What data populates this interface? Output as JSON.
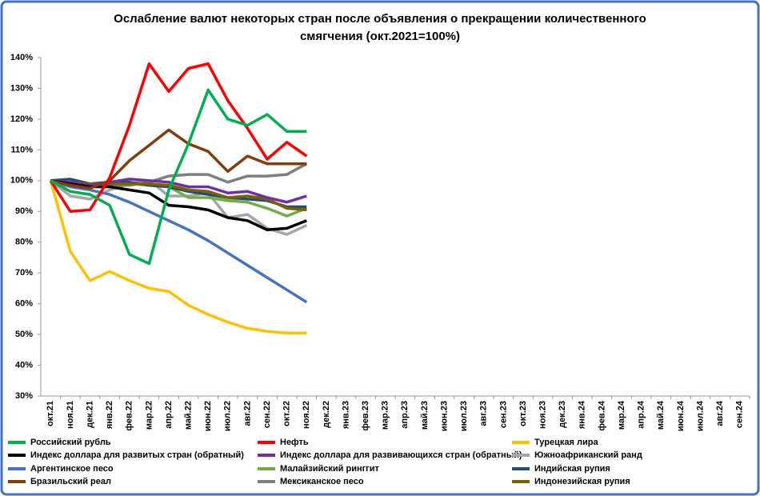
{
  "chart_data": {
    "type": "line",
    "title": "Ослабление валют некоторых стран после объявления о прекращении количественного",
    "subtitle": "смягчения  (окт.2021=100%)",
    "categories": [
      "окт.21",
      "ноя.21",
      "дек.21",
      "янв.22",
      "фев.22",
      "мар.22",
      "апр.22",
      "май.22",
      "июн.22",
      "июл.22",
      "авг.22",
      "сен.22",
      "окт.22",
      "ноя.22",
      "дек.22",
      "янв.23",
      "фев.23",
      "мар.23",
      "апр.23",
      "май.23",
      "июн.23",
      "июл.23",
      "авг.23",
      "сен.23",
      "окт.23",
      "ноя.23",
      "дек.23",
      "янв.24",
      "фев.24",
      "мар.24",
      "апр.24",
      "май.24",
      "июн.24",
      "июл.24",
      "авг.24",
      "сен.24"
    ],
    "ylim": [
      30,
      140
    ],
    "yticks": [
      {
        "value": 30,
        "label": "30%"
      },
      {
        "value": 40,
        "label": "40%"
      },
      {
        "value": 50,
        "label": "50%"
      },
      {
        "value": 60,
        "label": "60%"
      },
      {
        "value": 70,
        "label": "70%"
      },
      {
        "value": 80,
        "label": "80%"
      },
      {
        "value": 90,
        "label": "90%"
      },
      {
        "value": 100,
        "label": "100%"
      },
      {
        "value": 110,
        "label": "110%"
      },
      {
        "value": 120,
        "label": "120%"
      },
      {
        "value": 130,
        "label": "130%"
      },
      {
        "value": 140,
        "label": "140%"
      }
    ],
    "grid": false,
    "series": [
      {
        "name": "Российский рубль",
        "color": "#00b050",
        "values": [
          100,
          96.5,
          95.5,
          92,
          76,
          73,
          97,
          112,
          129.5,
          120,
          118,
          121.5,
          116,
          116,
          null,
          null,
          null,
          null,
          null,
          null,
          null,
          null,
          null,
          null,
          null,
          null,
          null,
          null,
          null,
          null,
          null,
          null,
          null,
          null,
          null,
          null
        ]
      },
      {
        "name": "Нефть",
        "color": "#ff0000",
        "values": [
          100,
          90,
          90.5,
          101,
          118,
          138,
          129,
          136.5,
          138,
          126,
          117,
          107,
          112.5,
          108,
          null,
          null,
          null,
          null,
          null,
          null,
          null,
          null,
          null,
          null,
          null,
          null,
          null,
          null,
          null,
          null,
          null,
          null,
          null,
          null,
          null,
          null
        ]
      },
      {
        "name": "Турецкая лира",
        "color": "#ffc000",
        "values": [
          100,
          77,
          67.5,
          70.5,
          67.5,
          65,
          64,
          59.5,
          56.5,
          54,
          52,
          51,
          50.5,
          50.5,
          null,
          null,
          null,
          null,
          null,
          null,
          null,
          null,
          null,
          null,
          null,
          null,
          null,
          null,
          null,
          null,
          null,
          null,
          null,
          null,
          null,
          null
        ]
      },
      {
        "name": "Индекс доллара для развитых стран (обратный)",
        "color": "#000000",
        "values": [
          100,
          99,
          98,
          98,
          97,
          96,
          92,
          91.5,
          90.5,
          88,
          87,
          84,
          84.5,
          87,
          null,
          null,
          null,
          null,
          null,
          null,
          null,
          null,
          null,
          null,
          null,
          null,
          null,
          null,
          null,
          null,
          null,
          null,
          null,
          null,
          null,
          null
        ]
      },
      {
        "name": "Индекс доллара для развивающихся стран (обратный)",
        "color": "#7030a0",
        "values": [
          100,
          99.5,
          98.5,
          99.5,
          100.5,
          100,
          99.5,
          98,
          98,
          96,
          96.5,
          94.5,
          93,
          95,
          null,
          null,
          null,
          null,
          null,
          null,
          null,
          null,
          null,
          null,
          null,
          null,
          null,
          null,
          null,
          null,
          null,
          null,
          null,
          null,
          null,
          null
        ]
      },
      {
        "name": "Южноафриканский ранд",
        "color": "#a6a6a6",
        "values": [
          100,
          95,
          94,
          97,
          99,
          100,
          95,
          95,
          96,
          88,
          89,
          84.5,
          82.5,
          85.5,
          null,
          null,
          null,
          null,
          null,
          null,
          null,
          null,
          null,
          null,
          null,
          null,
          null,
          null,
          null,
          null,
          null,
          null,
          null,
          null,
          null,
          null
        ]
      },
      {
        "name": "Аргентинское песо",
        "color": "#4472c4",
        "values": [
          100,
          98,
          97,
          95.5,
          93,
          90,
          87,
          84,
          80.5,
          76.5,
          72.5,
          68.5,
          64.5,
          60.5,
          null,
          null,
          null,
          null,
          null,
          null,
          null,
          null,
          null,
          null,
          null,
          null,
          null,
          null,
          null,
          null,
          null,
          null,
          null,
          null,
          null,
          null
        ]
      },
      {
        "name": "Малайзийский ринггит",
        "color": "#70ad47",
        "values": [
          100,
          98.5,
          98,
          99,
          99,
          98.5,
          98,
          94.5,
          94.5,
          93.5,
          93,
          91,
          88.5,
          91,
          null,
          null,
          null,
          null,
          null,
          null,
          null,
          null,
          null,
          null,
          null,
          null,
          null,
          null,
          null,
          null,
          null,
          null,
          null,
          null,
          null,
          null
        ]
      },
      {
        "name": "Индийская рупия",
        "color": "#1f4e79",
        "values": [
          100,
          100.5,
          99,
          99.5,
          99.5,
          98.5,
          98,
          96.5,
          95.5,
          94.5,
          94,
          93.5,
          91.5,
          91.5,
          null,
          null,
          null,
          null,
          null,
          null,
          null,
          null,
          null,
          null,
          null,
          null,
          null,
          null,
          null,
          null,
          null,
          null,
          null,
          null,
          null,
          null
        ]
      },
      {
        "name": "Бразильский реал",
        "color": "#843c0c",
        "values": [
          100,
          98.5,
          97.5,
          100,
          106.5,
          111.5,
          116.5,
          112,
          109.5,
          103,
          108,
          105.5,
          105.5,
          105.5,
          null,
          null,
          null,
          null,
          null,
          null,
          null,
          null,
          null,
          null,
          null,
          null,
          null,
          null,
          null,
          null,
          null,
          null,
          null,
          null,
          null,
          null
        ]
      },
      {
        "name": "Мексиканское песо",
        "color": "#7f7f7f",
        "values": [
          100,
          99,
          98,
          98.5,
          98.5,
          99.5,
          101.5,
          102,
          102,
          99.5,
          101.5,
          101.5,
          102,
          105.5,
          null,
          null,
          null,
          null,
          null,
          null,
          null,
          null,
          null,
          null,
          null,
          null,
          null,
          null,
          null,
          null,
          null,
          null,
          null,
          null,
          null,
          null
        ]
      },
      {
        "name": "Индонезийская рупия",
        "color": "#7f6000",
        "values": [
          100,
          99.5,
          99,
          99,
          99,
          99,
          98.5,
          97,
          96.5,
          94.5,
          95,
          94,
          91,
          90.5,
          null,
          null,
          null,
          null,
          null,
          null,
          null,
          null,
          null,
          null,
          null,
          null,
          null,
          null,
          null,
          null,
          null,
          null,
          null,
          null,
          null,
          null
        ]
      }
    ]
  }
}
